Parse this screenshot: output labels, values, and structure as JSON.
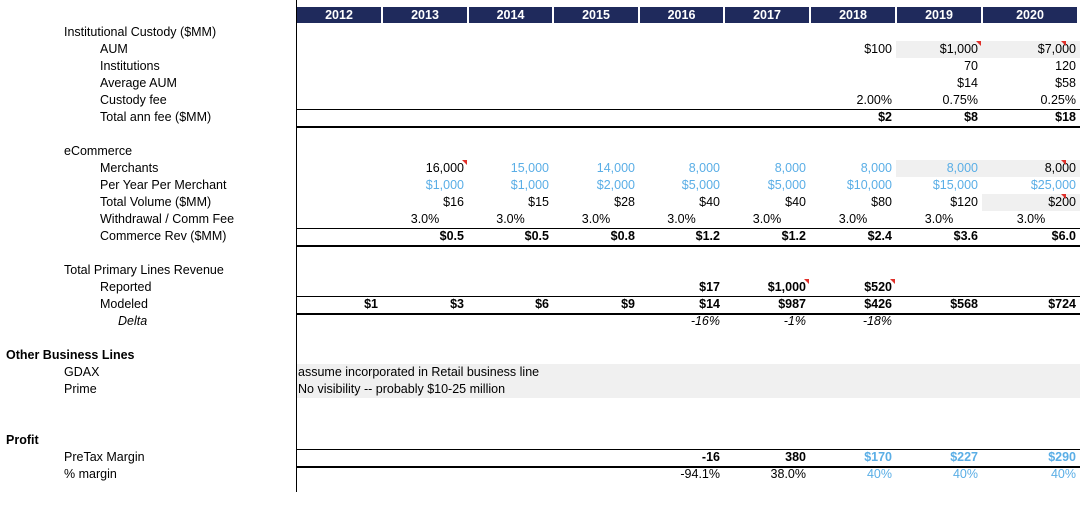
{
  "years": [
    "2012",
    "2013",
    "2014",
    "2015",
    "2016",
    "2017",
    "2018",
    "2019",
    "2020"
  ],
  "custody": {
    "title": "Institutional Custody ($MM)",
    "rows": [
      {
        "label": "AUM",
        "vals": [
          "",
          "",
          "",
          "",
          "",
          "",
          "$100",
          "$1,000",
          "$7,000"
        ]
      },
      {
        "label": "Institutions",
        "vals": [
          "",
          "",
          "",
          "",
          "",
          "",
          "",
          "70",
          "120"
        ]
      },
      {
        "label": "Average AUM",
        "vals": [
          "",
          "",
          "",
          "",
          "",
          "",
          "",
          "$14",
          "$58"
        ]
      },
      {
        "label": "Custody fee",
        "vals": [
          "",
          "",
          "",
          "",
          "",
          "",
          "2.00%",
          "0.75%",
          "0.25%"
        ]
      },
      {
        "label": "Total ann fee ($MM)",
        "vals": [
          "",
          "",
          "",
          "",
          "",
          "",
          "$2",
          "$8",
          "$18"
        ]
      }
    ]
  },
  "ecommerce": {
    "title": "eCommerce",
    "rows": [
      {
        "label": "Merchants",
        "vals": [
          "",
          "16,000",
          "15,000",
          "14,000",
          "8,000",
          "8,000",
          "8,000",
          "8,000",
          "8,000"
        ]
      },
      {
        "label": "Per Year Per Merchant",
        "vals": [
          "",
          "$1,000",
          "$1,000",
          "$2,000",
          "$5,000",
          "$5,000",
          "$10,000",
          "$15,000",
          "$25,000"
        ]
      },
      {
        "label": "Total Volume ($MM)",
        "vals": [
          "",
          "$16",
          "$15",
          "$28",
          "$40",
          "$40",
          "$80",
          "$120",
          "$200"
        ]
      },
      {
        "label": "Withdrawal / Comm Fee",
        "vals": [
          "",
          "3.0%",
          "3.0%",
          "3.0%",
          "3.0%",
          "3.0%",
          "3.0%",
          "3.0%",
          "3.0%"
        ]
      },
      {
        "label": "Commerce Rev ($MM)",
        "vals": [
          "",
          "$0.5",
          "$0.5",
          "$0.8",
          "$1.2",
          "$1.2",
          "$2.4",
          "$3.6",
          "$6.0"
        ]
      }
    ]
  },
  "primary": {
    "title": "Total Primary Lines Revenue",
    "rows": [
      {
        "label": "Reported",
        "vals": [
          "",
          "",
          "",
          "",
          "$17",
          "$1,000",
          "$520",
          "",
          ""
        ]
      },
      {
        "label": "Modeled",
        "vals": [
          "$1",
          "$3",
          "$6",
          "$9",
          "$14",
          "$987",
          "$426",
          "$568",
          "$724"
        ]
      },
      {
        "label": "Delta",
        "vals": [
          "",
          "",
          "",
          "",
          "-16%",
          "-1%",
          "-18%",
          "",
          ""
        ]
      }
    ]
  },
  "other": {
    "title": "Other Business Lines",
    "rows": [
      {
        "label": "GDAX",
        "note": "assume incorporated in Retail business line"
      },
      {
        "label": "Prime",
        "note": "No visibility -- probably $10-25 million"
      }
    ]
  },
  "profit": {
    "title": "Profit",
    "rows": [
      {
        "label": "PreTax Margin",
        "vals": [
          "",
          "",
          "",
          "",
          "-16",
          "380",
          "$170",
          "$227",
          "$290"
        ]
      },
      {
        "label": "% margin",
        "vals": [
          "",
          "",
          "",
          "",
          "-94.1%",
          "38.0%",
          "40%",
          "40%",
          "40%"
        ]
      }
    ]
  },
  "colors": {
    "header_bg": "#1f2a5c",
    "input_blue": "#5aaee6",
    "flag_red": "#e0302a"
  }
}
